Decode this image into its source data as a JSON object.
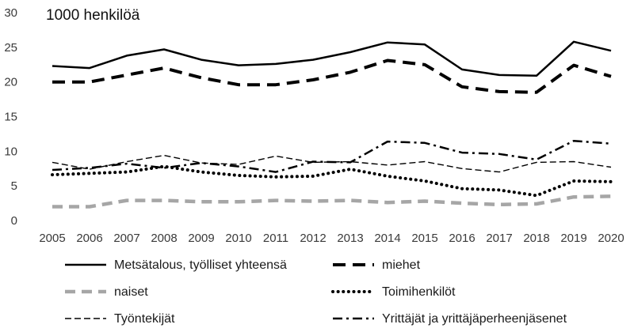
{
  "chart_data": {
    "type": "line",
    "unit_label": "1000 henkilöä",
    "x": [
      "2005",
      "2006",
      "2007",
      "2008",
      "2009",
      "2010",
      "2011",
      "2012",
      "2013",
      "2014",
      "2015",
      "2016",
      "2017",
      "2018",
      "2019",
      "2020"
    ],
    "ylim": [
      0,
      30
    ],
    "yticks": [
      0,
      5,
      10,
      15,
      20,
      25,
      30
    ],
    "grid": false,
    "legend_position": "bottom",
    "series": [
      {
        "name": "Metsätalous, työlliset yhteensä",
        "color": "#000000",
        "style": "solid-thin",
        "values": [
          22.3,
          22.0,
          23.8,
          24.7,
          23.2,
          22.4,
          22.6,
          23.2,
          24.3,
          25.7,
          25.4,
          21.8,
          21.0,
          20.9,
          25.8,
          24.5
        ]
      },
      {
        "name": "miehet",
        "color": "#000000",
        "style": "dash-bold",
        "values": [
          20.0,
          20.0,
          21.0,
          22.0,
          20.6,
          19.6,
          19.6,
          20.3,
          21.4,
          23.1,
          22.5,
          19.3,
          18.6,
          18.5,
          22.4,
          20.8
        ]
      },
      {
        "name": "naiset",
        "color": "#a6a6a6",
        "style": "dash-gray",
        "values": [
          2.0,
          2.0,
          2.9,
          2.9,
          2.7,
          2.7,
          2.9,
          2.8,
          2.9,
          2.6,
          2.8,
          2.5,
          2.3,
          2.4,
          3.4,
          3.5
        ]
      },
      {
        "name": "Toimihenkilöt",
        "color": "#000000",
        "style": "dotted",
        "values": [
          6.6,
          6.8,
          7.0,
          7.8,
          7.0,
          6.5,
          6.3,
          6.4,
          7.4,
          6.4,
          5.7,
          4.6,
          4.4,
          3.6,
          5.7,
          5.6
        ]
      },
      {
        "name": "Työntekijät",
        "color": "#000000",
        "style": "dash-thin",
        "values": [
          8.4,
          7.4,
          8.5,
          9.4,
          8.3,
          8.1,
          9.3,
          8.4,
          8.5,
          8.0,
          8.5,
          7.5,
          7.0,
          8.4,
          8.5,
          7.7
        ]
      },
      {
        "name": "Yrittäjät ja yrittäjäperheenjäsenet",
        "color": "#000000",
        "style": "dash-dot",
        "values": [
          7.3,
          7.6,
          8.2,
          7.6,
          8.3,
          7.8,
          7.0,
          8.5,
          8.4,
          11.4,
          11.2,
          9.8,
          9.6,
          8.8,
          11.5,
          11.1
        ]
      }
    ]
  }
}
